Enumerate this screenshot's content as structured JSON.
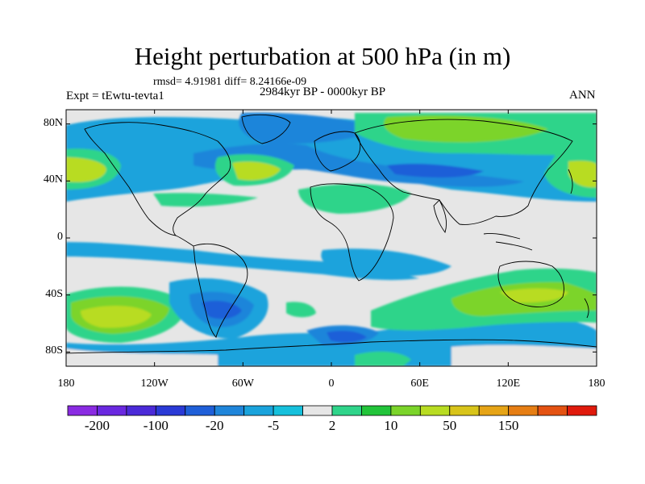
{
  "title": "Height perturbation at 500 hPa (in m)",
  "stats_text": "rmsd= 4.91981 diff= 8.24166e-09",
  "left_label": "Expt = tEwtu-tevta1",
  "center_label": "2984kyr BP - 0000kyr BP",
  "right_label": "ANN",
  "lat_ticks": [
    {
      "label": "80N",
      "lat": 80
    },
    {
      "label": "40N",
      "lat": 40
    },
    {
      "label": "0",
      "lat": 0
    },
    {
      "label": "40S",
      "lat": -40
    },
    {
      "label": "80S",
      "lat": -80
    }
  ],
  "lon_ticks": [
    {
      "label": "180",
      "lon": -180
    },
    {
      "label": "120W",
      "lon": -120
    },
    {
      "label": "60W",
      "lon": -60
    },
    {
      "label": "0",
      "lon": 0
    },
    {
      "label": "60E",
      "lon": 60
    },
    {
      "label": "120E",
      "lon": 120
    },
    {
      "label": "180",
      "lon": 180
    }
  ],
  "colorbar": {
    "colors": [
      "#8a2be2",
      "#6a28e0",
      "#4b2ad8",
      "#2a3ad6",
      "#1f5fd8",
      "#1f85da",
      "#1aa3dc",
      "#16c0dc",
      "#e6e6e6",
      "#2fd48a",
      "#22c43a",
      "#7bd42a",
      "#b8dc22",
      "#d8c41a",
      "#e6a416",
      "#e67e14",
      "#e45212",
      "#e01a0c"
    ],
    "labels": [
      {
        "text": "-200",
        "boundary": 1
      },
      {
        "text": "-100",
        "boundary": 3
      },
      {
        "text": "-20",
        "boundary": 5
      },
      {
        "text": "-5",
        "boundary": 7
      },
      {
        "text": "2",
        "boundary": 9
      },
      {
        "text": "10",
        "boundary": 11
      },
      {
        "text": "50",
        "boundary": 13
      },
      {
        "text": "150",
        "boundary": 15
      }
    ]
  },
  "colors": {
    "background_field": "#e6e6e6",
    "coast": "#000000"
  }
}
